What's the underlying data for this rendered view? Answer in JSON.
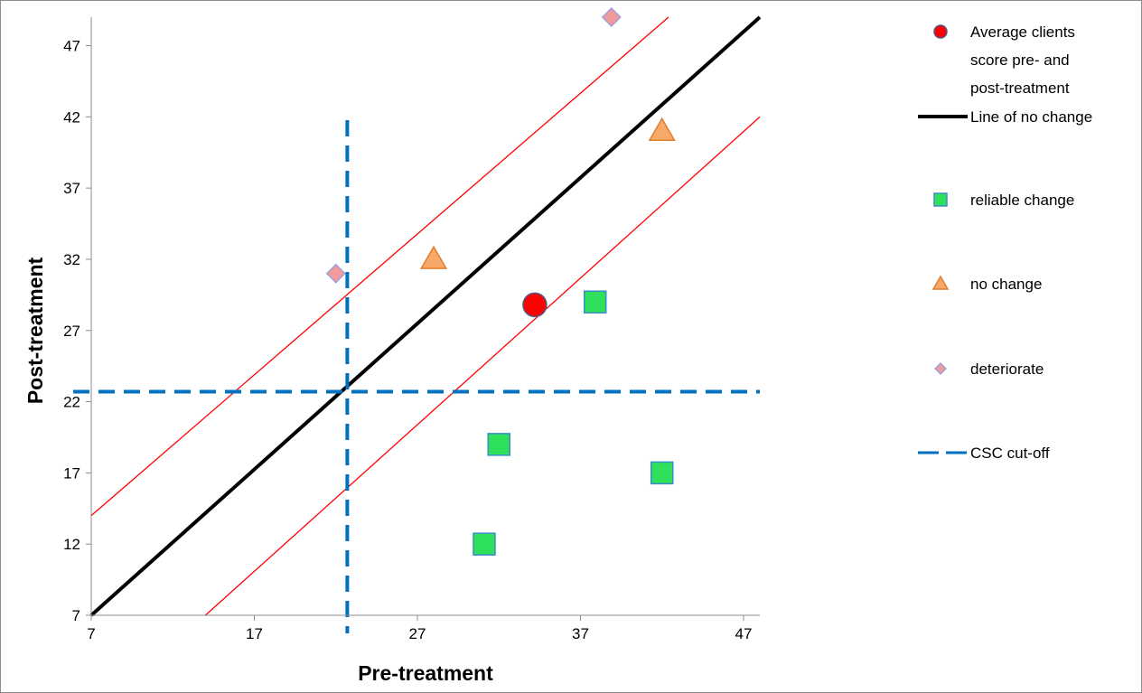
{
  "chart_data": {
    "type": "scatter",
    "xlabel": "Pre-treatment",
    "ylabel": "Post-treatment",
    "xlim": [
      7,
      48
    ],
    "ylim": [
      7,
      49
    ],
    "xticks": [
      7,
      17,
      27,
      37,
      47
    ],
    "yticks": [
      7,
      12,
      17,
      22,
      27,
      32,
      37,
      42,
      47
    ],
    "grid": false,
    "legend_position": "right",
    "colors": {
      "average": "#ff0000",
      "reliable": "#2ee05a",
      "no_change": "#f7a96a",
      "deteriorate": "#f29b9b",
      "csc": "#0070c0",
      "no_change_line": "#000000",
      "rci_band": "#ff0000"
    },
    "series": [
      {
        "name": "Average clients score pre- and post-treatment",
        "marker": "circle",
        "legend_lines": [
          "Average clients",
          "score pre- and",
          "post-treatment"
        ],
        "points": [
          {
            "x": 34.2,
            "y": 28.8
          }
        ]
      },
      {
        "name": "reliable change",
        "marker": "square",
        "legend_lines": [
          "reliable change"
        ],
        "points": [
          {
            "x": 37.9,
            "y": 29.0
          },
          {
            "x": 32.0,
            "y": 19.0
          },
          {
            "x": 31.1,
            "y": 12.0
          },
          {
            "x": 42.0,
            "y": 17.0
          }
        ]
      },
      {
        "name": "no change",
        "marker": "triangle",
        "legend_lines": [
          "no change"
        ],
        "points": [
          {
            "x": 28.0,
            "y": 32.0
          },
          {
            "x": 42.0,
            "y": 41.0
          }
        ]
      },
      {
        "name": "deteriorate",
        "marker": "diamond",
        "legend_lines": [
          "deteriorate"
        ],
        "points": [
          {
            "x": 22.0,
            "y": 31.0
          },
          {
            "x": 38.9,
            "y": 49.0
          }
        ]
      }
    ],
    "no_change_line": {
      "name": "Line of no change",
      "points": [
        [
          7,
          7
        ],
        [
          48,
          49
        ]
      ]
    },
    "reliable_change_band": {
      "offset": 7,
      "upper": [
        [
          7,
          14
        ],
        [
          42.4,
          49
        ]
      ],
      "lower": [
        [
          14,
          7
        ],
        [
          48,
          42
        ]
      ]
    },
    "csc_cutoff": {
      "name": "CSC cut-off",
      "x": 22.7,
      "y": 22.7
    }
  }
}
